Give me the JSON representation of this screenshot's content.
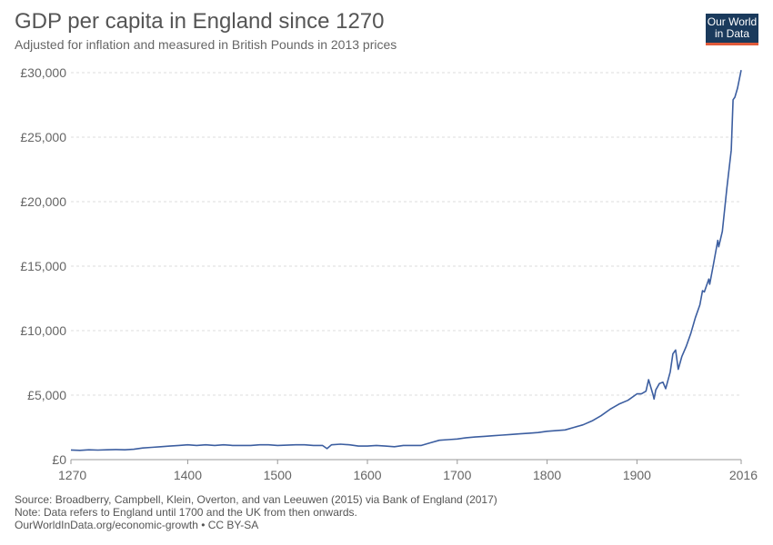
{
  "header": {
    "title": "GDP per capita in England since 1270",
    "subtitle": "Adjusted for inflation and measured in British Pounds in 2013 prices"
  },
  "logo": {
    "line1": "Our World",
    "line2": "in Data"
  },
  "footer": {
    "source": "Source: Broadberry, Campbell, Klein, Overton, and van Leeuwen (2015) via Bank of England (2017)",
    "note": "Note: Data refers to England until 1700 and the UK from then onwards.",
    "link": "OurWorldInData.org/economic-growth • CC BY-SA"
  },
  "colors": {
    "line": "#3c5ea0",
    "grid": "#dddddd",
    "axis_text": "#666666",
    "logo_bg": "#1a3a5c",
    "logo_accent": "#e05a3a"
  },
  "chart_data": {
    "type": "line",
    "title": "GDP per capita in England since 1270",
    "xlim": [
      1270,
      2016
    ],
    "ylim": [
      0,
      30000
    ],
    "grid": true,
    "x_ticks": [
      1270,
      1400,
      1500,
      1600,
      1700,
      1800,
      1900,
      2016
    ],
    "x_tick_labels": [
      "1270",
      "1400",
      "1500",
      "1600",
      "1700",
      "1800",
      "1900",
      "2016"
    ],
    "y_ticks": [
      0,
      5000,
      10000,
      15000,
      20000,
      25000,
      30000
    ],
    "y_tick_labels": [
      "£0",
      "£5,000",
      "£10,000",
      "£15,000",
      "£20,000",
      "£25,000",
      "£30,000"
    ],
    "series": [
      {
        "x": [
          1270,
          1280,
          1290,
          1300,
          1310,
          1320,
          1330,
          1340,
          1350,
          1360,
          1370,
          1380,
          1390,
          1400,
          1410,
          1420,
          1430,
          1440,
          1450,
          1460,
          1470,
          1480,
          1490,
          1500,
          1510,
          1520,
          1530,
          1540,
          1550,
          1555,
          1560,
          1570,
          1580,
          1590,
          1600,
          1610,
          1620,
          1630,
          1640,
          1650,
          1660,
          1670,
          1680,
          1690,
          1700,
          1710,
          1720,
          1730,
          1740,
          1750,
          1760,
          1770,
          1780,
          1790,
          1800,
          1810,
          1820,
          1830,
          1840,
          1850,
          1860,
          1870,
          1880,
          1890,
          1900,
          1905,
          1910,
          1913,
          1918,
          1919,
          1921,
          1925,
          1929,
          1932,
          1937,
          1940,
          1943,
          1946,
          1950,
          1955,
          1960,
          1965,
          1970,
          1973,
          1975,
          1980,
          1981,
          1985,
          1990,
          1991,
          1995,
          2000,
          2005,
          2007,
          2009,
          2012,
          2016
        ],
        "values": [
          750,
          720,
          760,
          740,
          760,
          780,
          760,
          800,
          900,
          950,
          1000,
          1050,
          1100,
          1150,
          1100,
          1150,
          1100,
          1150,
          1100,
          1100,
          1100,
          1150,
          1150,
          1100,
          1120,
          1150,
          1150,
          1100,
          1100,
          850,
          1150,
          1200,
          1150,
          1050,
          1050,
          1100,
          1050,
          1000,
          1100,
          1100,
          1100,
          1300,
          1500,
          1550,
          1600,
          1700,
          1750,
          1800,
          1850,
          1900,
          1950,
          2000,
          2050,
          2100,
          2200,
          2250,
          2300,
          2500,
          2700,
          3000,
          3400,
          3900,
          4300,
          4600,
          5100,
          5100,
          5300,
          6200,
          5000,
          4700,
          5400,
          5900,
          6000,
          5500,
          6800,
          8200,
          8500,
          7000,
          8000,
          8800,
          9800,
          11000,
          12000,
          13100,
          13000,
          14000,
          13600,
          15100,
          17000,
          16500,
          17700,
          21000,
          24000,
          27900,
          28100,
          28800,
          30200
        ]
      }
    ]
  }
}
